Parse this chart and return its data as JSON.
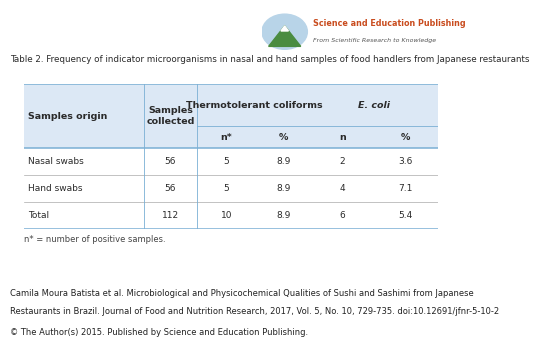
{
  "title": "Table 2. Frequency of indicator microorganisms in nasal and hand samples of food handlers from Japanese restaurants",
  "rows": [
    [
      "Nasal swabs",
      "56",
      "5",
      "8.9",
      "2",
      "3.6"
    ],
    [
      "Hand swabs",
      "56",
      "5",
      "8.9",
      "4",
      "7.1"
    ],
    [
      "Total",
      "112",
      "10",
      "8.9",
      "6",
      "5.4"
    ]
  ],
  "footnote": "n* = number of positive samples.",
  "citation_line1": "Camila Moura Batista et al. Microbiological and Physicochemical Qualities of Sushi and Sashimi from Japanese",
  "citation_line2": "Restaurants in Brazil. Journal of Food and Nutrition Research, 2017, Vol. 5, No. 10, 729-735. doi:10.12691/jfnr-5-10-2",
  "copyright": "© The Author(s) 2015. Published by Science and Education Publishing.",
  "header_bg": "#dce8f5",
  "border_color": "#7aafd4",
  "text_color": "#2a2a2a",
  "logo_text_main": "Science and Education Publishing",
  "logo_text_sub": "From Scientific Research to Knowledge",
  "logo_main_color": "#c94c1e",
  "logo_sub_color": "#555555",
  "logo_circle_color": "#b8d4e8",
  "logo_mountain_color": "#4a8c40",
  "logo_peak_color": "#3a7030"
}
